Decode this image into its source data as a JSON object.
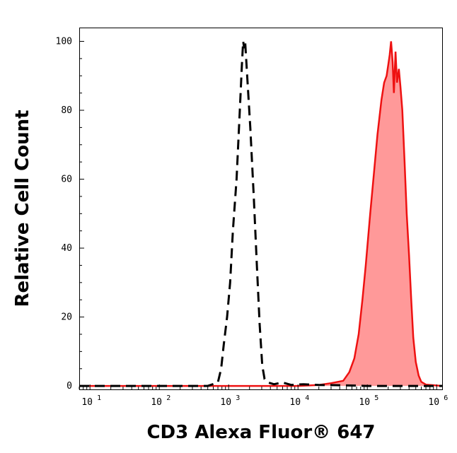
{
  "chart_data": {
    "type": "area",
    "xlabel": "CD3 Alexa Fluor® 647",
    "ylabel": "Relative Cell Count",
    "x_scale": "log",
    "xlim": [
      7,
      1200000
    ],
    "ylim": [
      -1,
      104
    ],
    "x_ticks": [
      {
        "base": "10",
        "exp": "1",
        "value": 10
      },
      {
        "base": "10",
        "exp": "2",
        "value": 100
      },
      {
        "base": "10",
        "exp": "3",
        "value": 1000
      },
      {
        "base": "10",
        "exp": "4",
        "value": 10000
      },
      {
        "base": "10",
        "exp": "5",
        "value": 100000
      },
      {
        "base": "10",
        "exp": "6",
        "value": 1000000
      }
    ],
    "y_ticks": [
      "0",
      "20",
      "40",
      "60",
      "80",
      "100"
    ],
    "grid": false,
    "series": [
      {
        "style": "dashed",
        "color": "#000000",
        "filled": false,
        "points": [
          [
            7,
            0
          ],
          [
            100,
            0
          ],
          [
            500,
            0
          ],
          [
            700,
            1
          ],
          [
            780,
            5
          ],
          [
            850,
            12
          ],
          [
            950,
            20
          ],
          [
            1050,
            30
          ],
          [
            1150,
            45
          ],
          [
            1300,
            60
          ],
          [
            1450,
            80
          ],
          [
            1550,
            93
          ],
          [
            1620,
            100
          ],
          [
            1680,
            98
          ],
          [
            1730,
            100
          ],
          [
            1850,
            90
          ],
          [
            2050,
            75
          ],
          [
            2300,
            55
          ],
          [
            2550,
            35
          ],
          [
            2800,
            18
          ],
          [
            3050,
            6
          ],
          [
            3300,
            2
          ],
          [
            3700,
            1
          ],
          [
            4500,
            0.5
          ],
          [
            6000,
            1
          ],
          [
            8000,
            0.3
          ],
          [
            12000,
            0.5
          ],
          [
            20000,
            0.3
          ],
          [
            40000,
            0.2
          ],
          [
            100000,
            0
          ],
          [
            1200000,
            0
          ]
        ]
      },
      {
        "style": "solid",
        "color": "#ee1111",
        "fill": "#ff9999",
        "filled": true,
        "points": [
          [
            7,
            0
          ],
          [
            10000,
            0
          ],
          [
            20000,
            0.3
          ],
          [
            30000,
            0.8
          ],
          [
            45000,
            1.5
          ],
          [
            55000,
            4
          ],
          [
            65000,
            8
          ],
          [
            75000,
            15
          ],
          [
            85000,
            25
          ],
          [
            95000,
            35
          ],
          [
            110000,
            50
          ],
          [
            125000,
            62
          ],
          [
            140000,
            73
          ],
          [
            160000,
            83
          ],
          [
            175000,
            88
          ],
          [
            190000,
            90
          ],
          [
            200000,
            93
          ],
          [
            210000,
            96
          ],
          [
            220000,
            100
          ],
          [
            232000,
            94
          ],
          [
            242000,
            85
          ],
          [
            255000,
            97
          ],
          [
            268000,
            88
          ],
          [
            285000,
            92
          ],
          [
            300000,
            87
          ],
          [
            320000,
            80
          ],
          [
            345000,
            65
          ],
          [
            370000,
            50
          ],
          [
            400000,
            38
          ],
          [
            430000,
            25
          ],
          [
            460000,
            14
          ],
          [
            500000,
            7
          ],
          [
            550000,
            3
          ],
          [
            600000,
            1.2
          ],
          [
            700000,
            0.4
          ],
          [
            1200000,
            0
          ]
        ]
      }
    ]
  }
}
